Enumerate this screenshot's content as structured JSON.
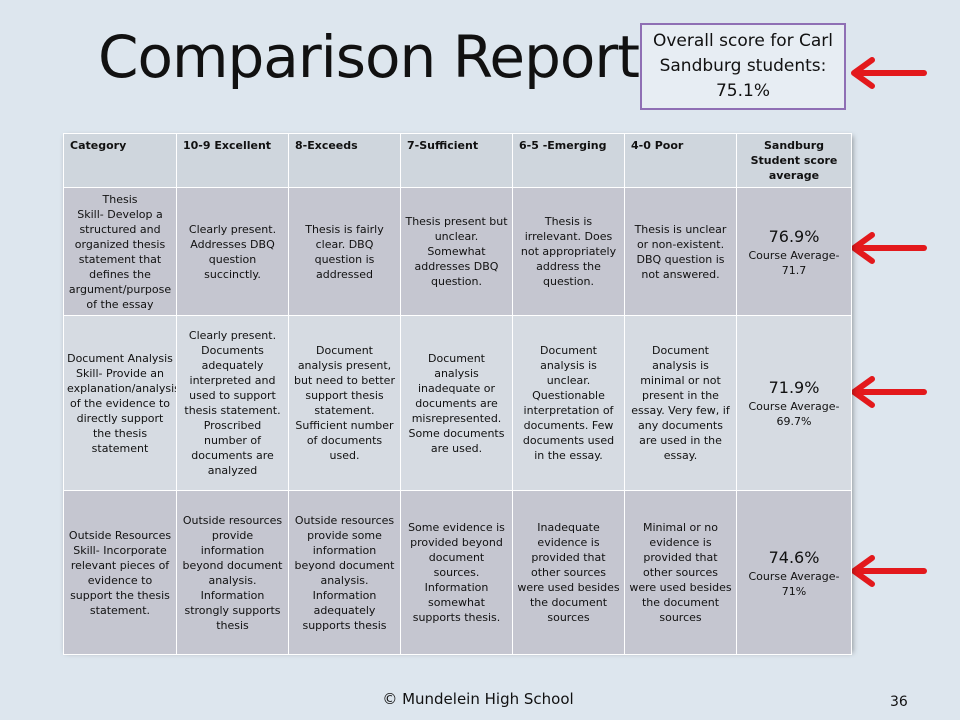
{
  "slide": {
    "title": "Comparison Reports",
    "callout": "Overall score for Carl Sandburg students: 75.1%",
    "footer": "© Mundelein High School",
    "page_number": "36"
  },
  "table": {
    "headers": [
      "Category",
      "10-9 Excellent",
      "8-Exceeds",
      "7-Sufficient",
      "6-5 -Emerging",
      "4-0 Poor",
      "Sandburg Student score average"
    ],
    "rows": [
      {
        "category": "Thesis\nSkill- Develop a structured and organized thesis statement that defines the argument/purpose of the essay",
        "excellent": "Clearly present. Addresses DBQ question succinctly.",
        "exceeds": "Thesis is fairly clear. DBQ question is addressed",
        "sufficient": "Thesis present but unclear. Somewhat addresses DBQ question.",
        "emerging": "Thesis is irrelevant. Does not appropriately address the question.",
        "poor": "Thesis is unclear or non-existent. DBQ question is not answered.",
        "score": "76.9%",
        "course_average": "Course Average- 71.7"
      },
      {
        "category": "Document Analysis\nSkill- Provide an explanation/analysis of the evidence to directly support the thesis statement",
        "excellent": "Clearly present. Documents adequately interpreted and used to support thesis statement. Proscribed number of documents are analyzed",
        "exceeds": "Document analysis present, but need to better support thesis statement. Sufficient number of documents used.",
        "sufficient": "Document analysis inadequate or documents are misrepresented. Some documents are used.",
        "emerging": "Document analysis is unclear. Questionable interpretation of documents. Few documents used in the essay.",
        "poor": "Document analysis is minimal or not present in the essay. Very few, if any documents are used in the essay.",
        "score": "71.9%",
        "course_average": "Course Average- 69.7%"
      },
      {
        "category": "Outside Resources\nSkill- Incorporate relevant pieces of evidence to support the thesis statement.",
        "excellent": "Outside resources provide information beyond document analysis. Information strongly supports thesis",
        "exceeds": "Outside resources provide some information beyond document analysis. Information adequately supports thesis",
        "sufficient": "Some evidence is provided beyond document sources. Information somewhat supports thesis.",
        "emerging": "Inadequate evidence is provided that other sources were used besides the document sources",
        "poor": "Minimal or no evidence is provided that other sources were used besides the document sources",
        "score": "74.6%",
        "course_average": "Course Average- 71%"
      }
    ]
  },
  "icons": [
    "red-arrow-icon"
  ],
  "colors": {
    "arrow": "#e3191c",
    "callout_border": "#8f6fb4"
  }
}
